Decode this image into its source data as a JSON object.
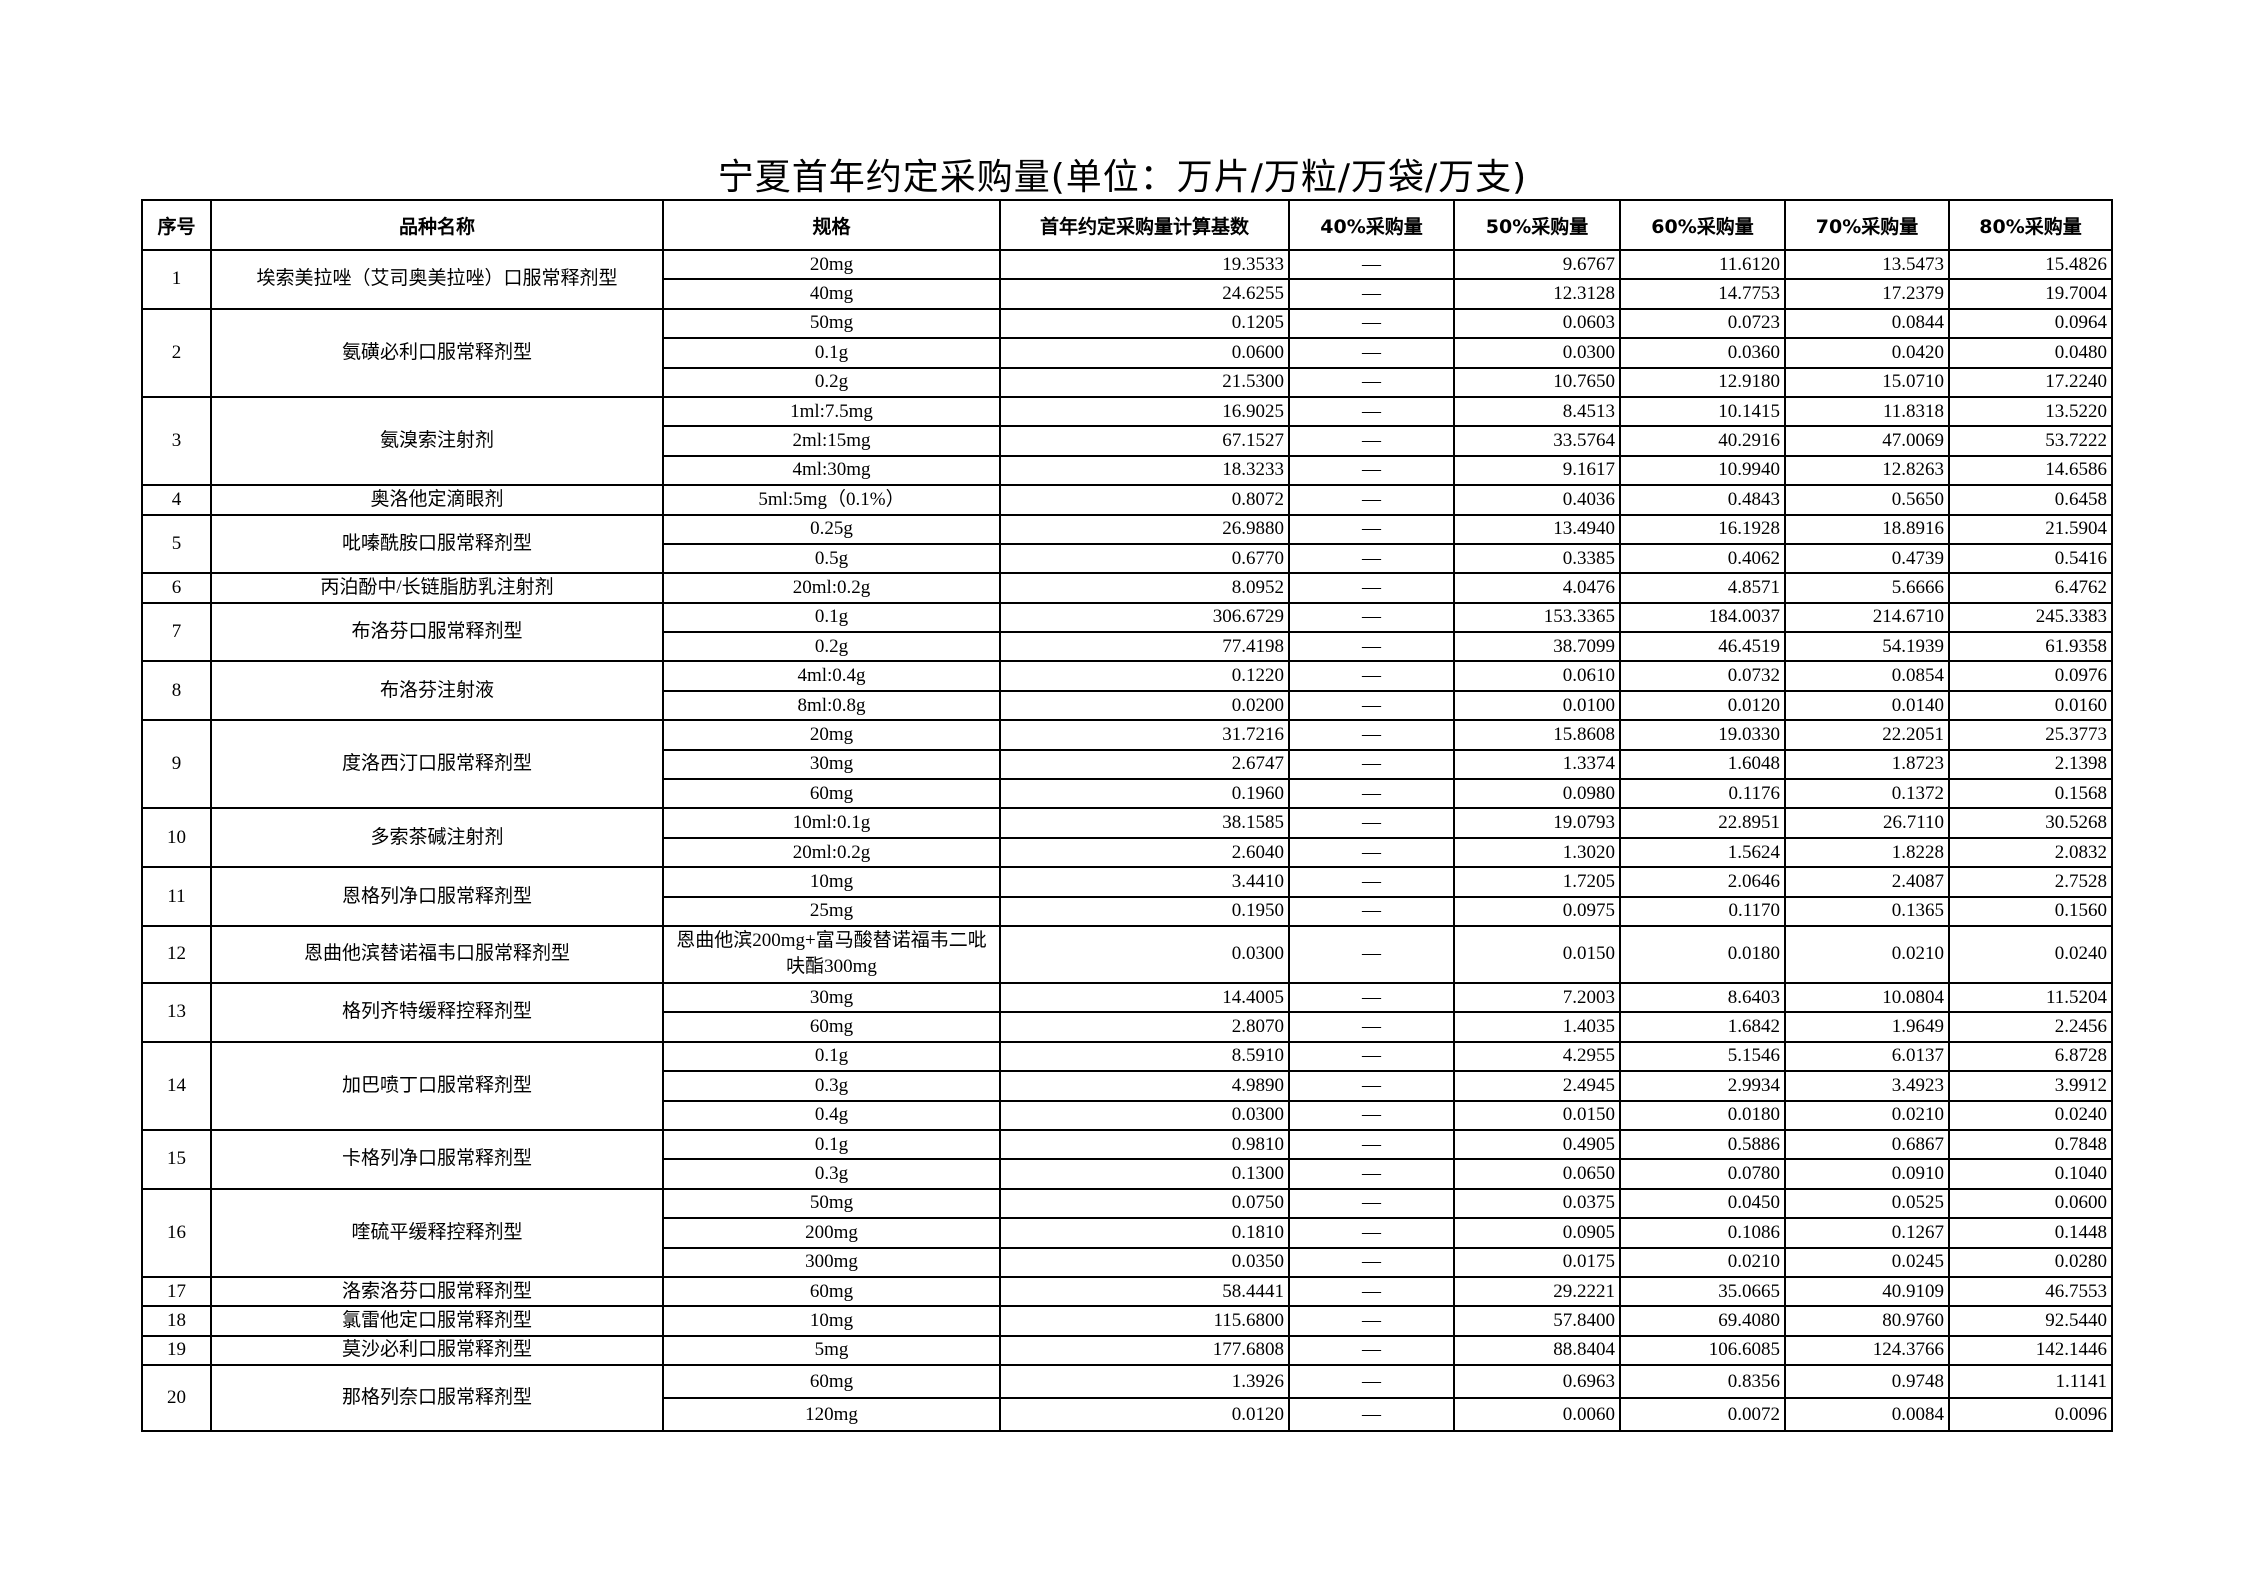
{
  "title": "宁夏首年约定采购量(单位：万片/万粒/万袋/万支)",
  "headers": [
    "序号",
    "品种名称",
    "规格",
    "首年约定采购量计算基数",
    "40%采购量",
    "50%采购量",
    "60%采购量",
    "70%采购量",
    "80%采购量"
  ],
  "items": [
    {
      "no": "1",
      "name": "埃索美拉唑（艾司奥美拉唑）口服常释剂型",
      "rows": [
        [
          "20mg",
          "19.3533",
          "—",
          "9.6767",
          "11.6120",
          "13.5473",
          "15.4826"
        ],
        [
          "40mg",
          "24.6255",
          "—",
          "12.3128",
          "14.7753",
          "17.2379",
          "19.7004"
        ]
      ]
    },
    {
      "no": "2",
      "name": "氨磺必利口服常释剂型",
      "rows": [
        [
          "50mg",
          "0.1205",
          "—",
          "0.0603",
          "0.0723",
          "0.0844",
          "0.0964"
        ],
        [
          "0.1g",
          "0.0600",
          "—",
          "0.0300",
          "0.0360",
          "0.0420",
          "0.0480"
        ],
        [
          "0.2g",
          "21.5300",
          "—",
          "10.7650",
          "12.9180",
          "15.0710",
          "17.2240"
        ]
      ]
    },
    {
      "no": "3",
      "name": "氨溴索注射剂",
      "rows": [
        [
          "1ml:7.5mg",
          "16.9025",
          "—",
          "8.4513",
          "10.1415",
          "11.8318",
          "13.5220"
        ],
        [
          "2ml:15mg",
          "67.1527",
          "—",
          "33.5764",
          "40.2916",
          "47.0069",
          "53.7222"
        ],
        [
          "4ml:30mg",
          "18.3233",
          "—",
          "9.1617",
          "10.9940",
          "12.8263",
          "14.6586"
        ]
      ]
    },
    {
      "no": "4",
      "name": "奥洛他定滴眼剂",
      "rows": [
        [
          "5ml:5mg（0.1%）",
          "0.8072",
          "—",
          "0.4036",
          "0.4843",
          "0.5650",
          "0.6458"
        ]
      ]
    },
    {
      "no": "5",
      "name": "吡嗪酰胺口服常释剂型",
      "rows": [
        [
          "0.25g",
          "26.9880",
          "—",
          "13.4940",
          "16.1928",
          "18.8916",
          "21.5904"
        ],
        [
          "0.5g",
          "0.6770",
          "—",
          "0.3385",
          "0.4062",
          "0.4739",
          "0.5416"
        ]
      ]
    },
    {
      "no": "6",
      "name": "丙泊酚中/长链脂肪乳注射剂",
      "rows": [
        [
          "20ml:0.2g",
          "8.0952",
          "—",
          "4.0476",
          "4.8571",
          "5.6666",
          "6.4762"
        ]
      ]
    },
    {
      "no": "7",
      "name": "布洛芬口服常释剂型",
      "rows": [
        [
          "0.1g",
          "306.6729",
          "—",
          "153.3365",
          "184.0037",
          "214.6710",
          "245.3383"
        ],
        [
          "0.2g",
          "77.4198",
          "—",
          "38.7099",
          "46.4519",
          "54.1939",
          "61.9358"
        ]
      ]
    },
    {
      "no": "8",
      "name": "布洛芬注射液",
      "rows": [
        [
          "4ml:0.4g",
          "0.1220",
          "—",
          "0.0610",
          "0.0732",
          "0.0854",
          "0.0976"
        ],
        [
          "8ml:0.8g",
          "0.0200",
          "—",
          "0.0100",
          "0.0120",
          "0.0140",
          "0.0160"
        ]
      ]
    },
    {
      "no": "9",
      "name": "度洛西汀口服常释剂型",
      "rows": [
        [
          "20mg",
          "31.7216",
          "—",
          "15.8608",
          "19.0330",
          "22.2051",
          "25.3773"
        ],
        [
          "30mg",
          "2.6747",
          "—",
          "1.3374",
          "1.6048",
          "1.8723",
          "2.1398"
        ],
        [
          "60mg",
          "0.1960",
          "—",
          "0.0980",
          "0.1176",
          "0.1372",
          "0.1568"
        ]
      ]
    },
    {
      "no": "10",
      "name": "多索茶碱注射剂",
      "rows": [
        [
          "10ml:0.1g",
          "38.1585",
          "—",
          "19.0793",
          "22.8951",
          "26.7110",
          "30.5268"
        ],
        [
          "20ml:0.2g",
          "2.6040",
          "—",
          "1.3020",
          "1.5624",
          "1.8228",
          "2.0832"
        ]
      ]
    },
    {
      "no": "11",
      "name": "恩格列净口服常释剂型",
      "rows": [
        [
          "10mg",
          "3.4410",
          "—",
          "1.7205",
          "2.0646",
          "2.4087",
          "2.7528"
        ],
        [
          "25mg",
          "0.1950",
          "—",
          "0.0975",
          "0.1170",
          "0.1365",
          "0.1560"
        ]
      ]
    },
    {
      "no": "12",
      "name": "恩曲他滨替诺福韦口服常释剂型",
      "rows": [
        [
          "恩曲他滨200mg+富马酸替诺福韦二吡呋酯300mg",
          "0.0300",
          "—",
          "0.0150",
          "0.0180",
          "0.0210",
          "0.0240"
        ]
      ]
    },
    {
      "no": "13",
      "name": "格列齐特缓释控释剂型",
      "rows": [
        [
          "30mg",
          "14.4005",
          "—",
          "7.2003",
          "8.6403",
          "10.0804",
          "11.5204"
        ],
        [
          "60mg",
          "2.8070",
          "—",
          "1.4035",
          "1.6842",
          "1.9649",
          "2.2456"
        ]
      ]
    },
    {
      "no": "14",
      "name": "加巴喷丁口服常释剂型",
      "rows": [
        [
          "0.1g",
          "8.5910",
          "—",
          "4.2955",
          "5.1546",
          "6.0137",
          "6.8728"
        ],
        [
          "0.3g",
          "4.9890",
          "—",
          "2.4945",
          "2.9934",
          "3.4923",
          "3.9912"
        ],
        [
          "0.4g",
          "0.0300",
          "—",
          "0.0150",
          "0.0180",
          "0.0210",
          "0.0240"
        ]
      ]
    },
    {
      "no": "15",
      "name": "卡格列净口服常释剂型",
      "rows": [
        [
          "0.1g",
          "0.9810",
          "—",
          "0.4905",
          "0.5886",
          "0.6867",
          "0.7848"
        ],
        [
          "0.3g",
          "0.1300",
          "—",
          "0.0650",
          "0.0780",
          "0.0910",
          "0.1040"
        ]
      ]
    },
    {
      "no": "16",
      "name": "喹硫平缓释控释剂型",
      "rows": [
        [
          "50mg",
          "0.0750",
          "—",
          "0.0375",
          "0.0450",
          "0.0525",
          "0.0600"
        ],
        [
          "200mg",
          "0.1810",
          "—",
          "0.0905",
          "0.1086",
          "0.1267",
          "0.1448"
        ],
        [
          "300mg",
          "0.0350",
          "—",
          "0.0175",
          "0.0210",
          "0.0245",
          "0.0280"
        ]
      ]
    },
    {
      "no": "17",
      "name": "洛索洛芬口服常释剂型",
      "rows": [
        [
          "60mg",
          "58.4441",
          "—",
          "29.2221",
          "35.0665",
          "40.9109",
          "46.7553"
        ]
      ]
    },
    {
      "no": "18",
      "name": "氯雷他定口服常释剂型",
      "rows": [
        [
          "10mg",
          "115.6800",
          "—",
          "57.8400",
          "69.4080",
          "80.9760",
          "92.5440"
        ]
      ]
    },
    {
      "no": "19",
      "name": "莫沙必利口服常释剂型",
      "rows": [
        [
          "5mg",
          "177.6808",
          "—",
          "88.8404",
          "106.6085",
          "124.3766",
          "142.1446"
        ]
      ]
    },
    {
      "no": "20",
      "name": "那格列奈口服常释剂型",
      "rows": [
        [
          "60mg",
          "1.3926",
          "—",
          "0.6963",
          "0.8356",
          "0.9748",
          "1.1141"
        ],
        [
          "120mg",
          "0.0120",
          "—",
          "0.0060",
          "0.0072",
          "0.0084",
          "0.0096"
        ]
      ]
    }
  ]
}
